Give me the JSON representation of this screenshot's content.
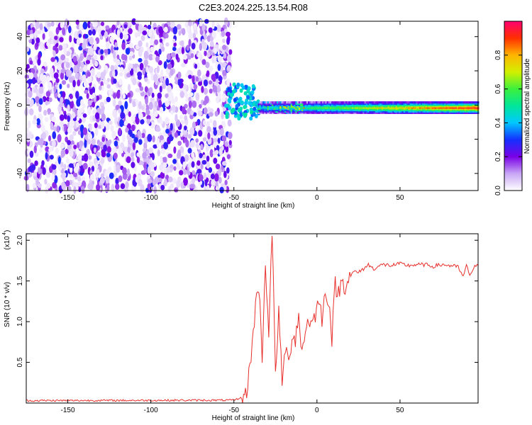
{
  "figure_title": "C2E3.2024.225.13.54.R08",
  "chart_data": [
    {
      "type": "heatmap",
      "xlabel": "Height of straight line (km)",
      "ylabel": "Frequency (Hz)",
      "xlim": [
        -175,
        97
      ],
      "ylim": [
        -50,
        49
      ],
      "x_ticks": [
        -150,
        -100,
        -50,
        0,
        50
      ],
      "y_ticks": [
        -40,
        -20,
        0,
        20,
        40
      ],
      "colorbar": {
        "label": "Normalized spectral amplitude",
        "range": [
          0,
          1
        ],
        "ticks": [
          "0.0",
          "0.2",
          "0.4",
          "0.6",
          "0.8"
        ],
        "tick_values": [
          0,
          0.2,
          0.4,
          0.6,
          0.8
        ],
        "colors": [
          "#ffffff",
          "#c8a6f5",
          "#7a00e6",
          "#1430ff",
          "#00c8ff",
          "#00e69a",
          "#3cf03c",
          "#d2f000",
          "#ffb400",
          "#ff3000",
          "#ff0070"
        ]
      },
      "regions": [
        {
          "description": "speckle noise",
          "x_range": [
            -175,
            -52
          ],
          "freq_range": [
            -50,
            49
          ],
          "amplitude_range": [
            0.02,
            0.3
          ]
        },
        {
          "description": "transition",
          "x_range": [
            -55,
            -35
          ],
          "freq_range": [
            -8,
            12
          ],
          "amplitude_range": [
            0.3,
            0.5
          ]
        },
        {
          "description": "signal band",
          "x_range": [
            -35,
            97
          ],
          "center_freq": -1.5,
          "half_width_hz": 3,
          "peak_amplitude": 0.95
        }
      ],
      "grid": false
    },
    {
      "type": "line",
      "xlabel": "Height of straight line (km)",
      "ylabel": "SNR (10 * v/v)",
      "y_multiplier_label": "(x10",
      "y_multiplier_exp": "4",
      "xlim": [
        -175,
        97
      ],
      "ylim": [
        0,
        20800
      ],
      "x_ticks": [
        -150,
        -100,
        -50,
        0,
        50
      ],
      "y_ticks": [
        5000,
        10000,
        15000,
        20000
      ],
      "y_tick_labels": [
        "0.5",
        "1.0",
        "1.5",
        "2.0"
      ],
      "color": "#e8302c",
      "series": [
        {
          "x": [
            -175,
            -50,
            -43,
            -41,
            -39,
            -37,
            -35,
            -33,
            -31,
            -29,
            -27,
            -25,
            -23,
            -21,
            -19,
            -17,
            -15,
            -13,
            -11,
            -9,
            -7,
            -5,
            -3,
            -1,
            1,
            3,
            5,
            7,
            9,
            11,
            13,
            15,
            17,
            19,
            21,
            23,
            25,
            28,
            31,
            34,
            37,
            40,
            45,
            50,
            55,
            60,
            65,
            70,
            75,
            80,
            85,
            88,
            90,
            92,
            95,
            97
          ],
          "values": [
            300,
            350,
            800,
            3500,
            7000,
            12000,
            14500,
            6000,
            17000,
            9000,
            20800,
            4000,
            11000,
            2500,
            7000,
            4500,
            8500,
            8000,
            11000,
            6000,
            9000,
            10500,
            9500,
            11000,
            12500,
            10500,
            13500,
            13000,
            8000,
            14500,
            13500,
            15000,
            14500,
            15500,
            15800,
            16200,
            16000,
            16500,
            17000,
            16500,
            16800,
            17000,
            16900,
            17100,
            16900,
            17000,
            17000,
            16800,
            17000,
            16900,
            16700,
            15500,
            16800,
            15800,
            16700,
            16900
          ]
        }
      ],
      "grid": false
    }
  ]
}
